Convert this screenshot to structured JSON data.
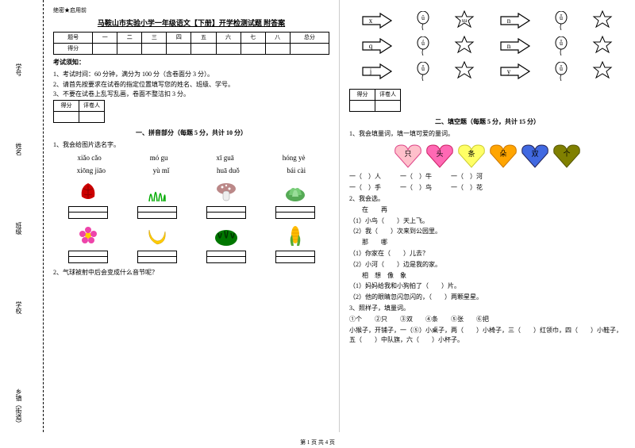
{
  "binding": {
    "items": [
      "乡镇（街道）",
      "学校",
      "班级",
      "姓名",
      "学号"
    ],
    "marks": [
      "密",
      "封",
      "线",
      "内",
      "不",
      "答",
      "题"
    ]
  },
  "header_tag": "绝密★启用前",
  "title": "马鞍山市实验小学一年级语文【下册】开学检测试题 附答案",
  "score_table": {
    "headers": [
      "题号",
      "一",
      "二",
      "三",
      "四",
      "五",
      "六",
      "七",
      "八",
      "总分"
    ],
    "row2": "得分"
  },
  "notice_title": "考试须知：",
  "notices": [
    "1、考试时间：60 分钟，满分为 100 分（含卷面分 3 分）。",
    "2、请首先按要求在试卷的指定位置填写您的姓名、班级、学号。",
    "3、不要在试卷上乱写乱画，卷面不整洁扣 3 分。"
  ],
  "mini_table": {
    "c1": "得分",
    "c2": "评卷人"
  },
  "section1_title": "一、拼音部分（每题 5 分，共计 10 分）",
  "q1_1": "1、我会给图片选名字。",
  "pinyin_row1": [
    "xiǎo cǎo",
    "mó gu",
    "xī guā",
    "hóng yè"
  ],
  "pinyin_row2": [
    "xiōng jiāo",
    "yù mǐ",
    "huā duǒ",
    "bái cài"
  ],
  "q1_2": "2、气球被射中后会变成什么音节呢？",
  "arrows": [
    [
      {
        "letter": "x"
      },
      {
        "letter": "ǔ"
      },
      {
        "letter": "xu"
      },
      {
        "letter": "n"
      },
      {
        "letter": "ǚ"
      },
      {
        "letter": ""
      }
    ],
    [
      {
        "letter": "q"
      },
      {
        "letter": "ǘ"
      },
      {
        "letter": ""
      },
      {
        "letter": "n"
      },
      {
        "letter": "ǚ"
      },
      {
        "letter": ""
      }
    ],
    [
      {
        "letter": "j"
      },
      {
        "letter": "ǚ"
      },
      {
        "letter": ""
      },
      {
        "letter": "y"
      },
      {
        "letter": "ǚ"
      },
      {
        "letter": ""
      }
    ]
  ],
  "section2_title": "二、填空题（每题 5 分，共计 15 分）",
  "q2_1": "1、我会填量词，填一填可爱的量词。",
  "hearts": [
    {
      "label": "只",
      "fill": "#ffc0cb",
      "stroke": "#d48"
    },
    {
      "label": "头",
      "fill": "#ff69b4",
      "stroke": "#c26"
    },
    {
      "label": "条",
      "fill": "#ffff66",
      "stroke": "#cc3"
    },
    {
      "label": "朵",
      "fill": "#ffa500",
      "stroke": "#c70"
    },
    {
      "label": "双",
      "fill": "#4169e1",
      "stroke": "#225"
    },
    {
      "label": "个",
      "fill": "#808000",
      "stroke": "#550"
    }
  ],
  "fill_lines_1": [
    "一（　）人　　　一（　）牛　　　一（　）河",
    "一（　）手　　　一（　）鸟　　　一（　）花"
  ],
  "q2_2": "2、我会选。",
  "sel_groups": [
    {
      "head": "　　在　　再",
      "items": [
        "（1）小鸟（　　）天上飞。",
        "（2）我（　　）次来到公园里。"
      ]
    },
    {
      "head": "　　那　　哪",
      "items": [
        "（1）你家在（　　）儿去？",
        "（2）小河（　　）边是我的家。"
      ]
    },
    {
      "head": "　　相　想　像　象",
      "items": [
        "（1）妈妈给我和小狗拍了（　　）片。",
        "（2）他的眼睛忽闪忽闪的，（　　）两颗星星。"
      ]
    }
  ],
  "q2_3": "3、照样子，填量词。",
  "q2_3_opts": "①个　　②只　　③双　　④条　　⑤张　　⑥把",
  "q2_3_text": "小猴子，开铺子，一（⑤）小桌子，两（　　）小椅子，三（　　）红领巾，四（　　）小鞋子，五（　　）中队旗，六（　　）小杯子。",
  "footer": "第 1 页 共 4 页",
  "colors": {
    "leaf": "#c00",
    "grass": "#0a0",
    "mushroom_cap": "#b66",
    "mushroom_stem": "#eee",
    "cabbage": "#5a5",
    "flower": "#e4a",
    "banana": "#fc0",
    "watermelon": "#070",
    "watermelon_stripe": "#030",
    "corn": "#fb0",
    "corn_leaf": "#5a3"
  }
}
